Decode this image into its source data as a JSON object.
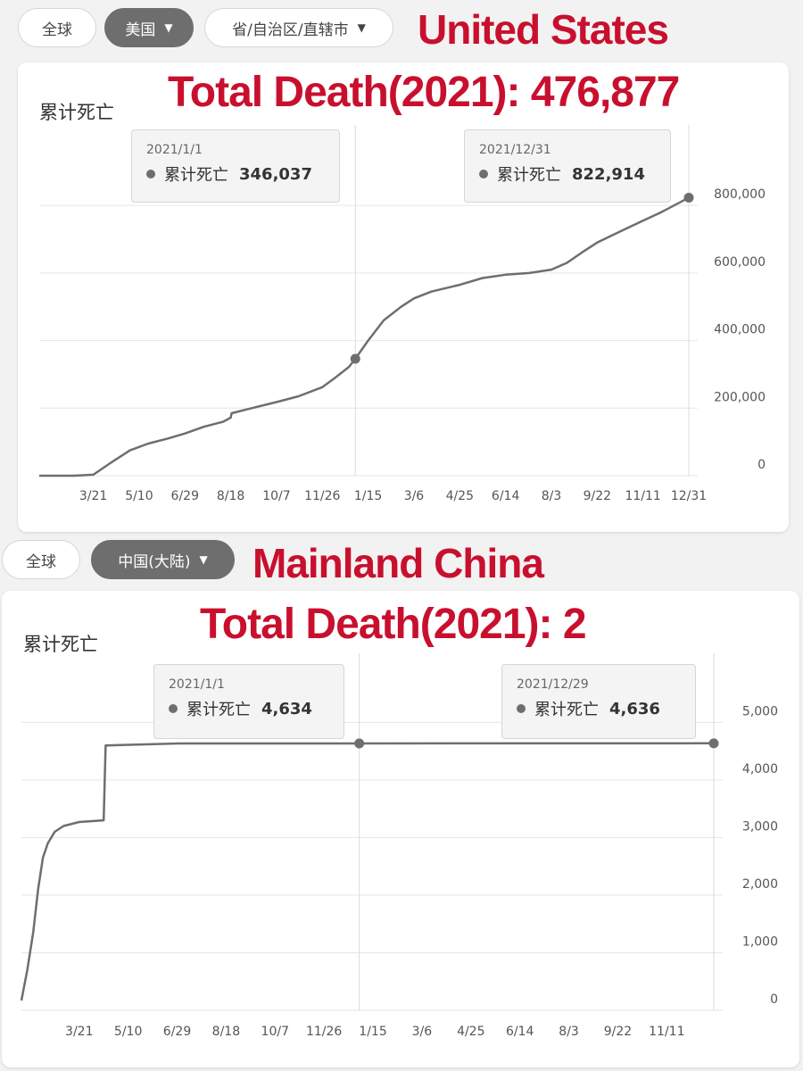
{
  "top": {
    "filters": [
      {
        "label": "全球",
        "active": false
      },
      {
        "label": "美国",
        "active": true,
        "caret": "▼"
      },
      {
        "label": "省/自治区/直辖市",
        "active": false,
        "caret": "▼"
      }
    ],
    "heading": "United States",
    "total_heading": "Total Death(2021): 476,877",
    "card_label": "累计死亡",
    "tooltips": [
      {
        "date": "2021/1/1",
        "series": "累计死亡",
        "value": "346,037"
      },
      {
        "date": "2021/12/31",
        "series": "累计死亡",
        "value": "822,914"
      }
    ]
  },
  "bottom": {
    "filters": [
      {
        "label": "全球",
        "active": false
      },
      {
        "label": "中国(大陆)",
        "active": true,
        "caret": "▼"
      }
    ],
    "heading": "Mainland China",
    "total_heading": "Total Death(2021): 2",
    "card_label": "累计死亡",
    "tooltips": [
      {
        "date": "2021/1/1",
        "series": "累计死亡",
        "value": "4,634"
      },
      {
        "date": "2021/12/29",
        "series": "累计死亡",
        "value": "4,636"
      }
    ]
  },
  "colors": {
    "line": "#6e6e6e",
    "heading": "#c8102e",
    "grid": "#e6e6e6"
  },
  "chart_data": [
    {
      "type": "line",
      "title": "累计死亡",
      "xlabel": "",
      "ylabel": "",
      "x_ticks": [
        "3/21",
        "5/10",
        "6/29",
        "8/18",
        "10/7",
        "11/26",
        "1/15",
        "3/6",
        "4/25",
        "6/14",
        "8/3",
        "9/22",
        "11/11",
        "12/31"
      ],
      "y_ticks": [
        "0",
        "200,000",
        "400,000",
        "600,000",
        "800,000"
      ],
      "ylim": [
        0,
        840000
      ],
      "grid": true,
      "y_axis_side": "right",
      "series": [
        {
          "x": [
            "2020/1/22",
            "2020/2/29",
            "2020/3/21",
            "2020/4/10",
            "2020/4/30",
            "2020/5/20",
            "2020/6/10",
            "2020/6/29",
            "2020/7/20",
            "2020/8/10",
            "2020/8/18",
            "2020/8/19",
            "2020/9/10",
            "2020/10/7",
            "2020/10/31",
            "2020/11/26",
            "2020/12/10",
            "2020/12/25",
            "2021/1/1",
            "2021/1/15",
            "2021/2/1",
            "2021/2/20",
            "2021/3/6",
            "2021/3/25",
            "2021/4/25",
            "2021/5/20",
            "2021/6/14",
            "2021/7/10",
            "2021/8/3",
            "2021/8/20",
            "2021/9/5",
            "2021/9/22",
            "2021/10/15",
            "2021/11/11",
            "2021/12/1",
            "2021/12/31"
          ],
          "y": [
            0,
            50,
            3000,
            40000,
            75000,
            95000,
            110000,
            125000,
            145000,
            160000,
            172000,
            185000,
            200000,
            218000,
            235000,
            262000,
            290000,
            322000,
            346037,
            400000,
            460000,
            500000,
            525000,
            545000,
            565000,
            585000,
            595000,
            600000,
            610000,
            630000,
            660000,
            690000,
            720000,
            755000,
            780000,
            822914
          ]
        }
      ],
      "markers": [
        {
          "x": "2021/1/1",
          "y": 346037
        },
        {
          "x": "2021/12/31",
          "y": 822914
        }
      ]
    },
    {
      "type": "line",
      "title": "累计死亡",
      "xlabel": "",
      "ylabel": "",
      "x_ticks": [
        "3/21",
        "5/10",
        "6/29",
        "8/18",
        "10/7",
        "11/26",
        "1/15",
        "3/6",
        "4/25",
        "6/14",
        "8/3",
        "9/22",
        "11/11"
      ],
      "y_ticks": [
        "0",
        "1,000",
        "2,000",
        "3,000",
        "4,000",
        "5,000"
      ],
      "ylim": [
        0,
        5300
      ],
      "grid": true,
      "y_axis_side": "right",
      "series": [
        {
          "x": [
            "2020/1/22",
            "2020/1/28",
            "2020/2/3",
            "2020/2/8",
            "2020/2/13",
            "2020/2/18",
            "2020/2/25",
            "2020/3/5",
            "2020/3/21",
            "2020/4/15",
            "2020/4/17",
            "2020/7/1",
            "2021/1/1",
            "2021/6/1",
            "2021/12/29"
          ],
          "y": [
            170,
            700,
            1350,
            2100,
            2650,
            2900,
            3100,
            3200,
            3270,
            3300,
            4600,
            4634,
            4634,
            4635,
            4636
          ]
        }
      ],
      "markers": [
        {
          "x": "2021/1/1",
          "y": 4634
        },
        {
          "x": "2021/12/29",
          "y": 4636
        }
      ]
    }
  ]
}
